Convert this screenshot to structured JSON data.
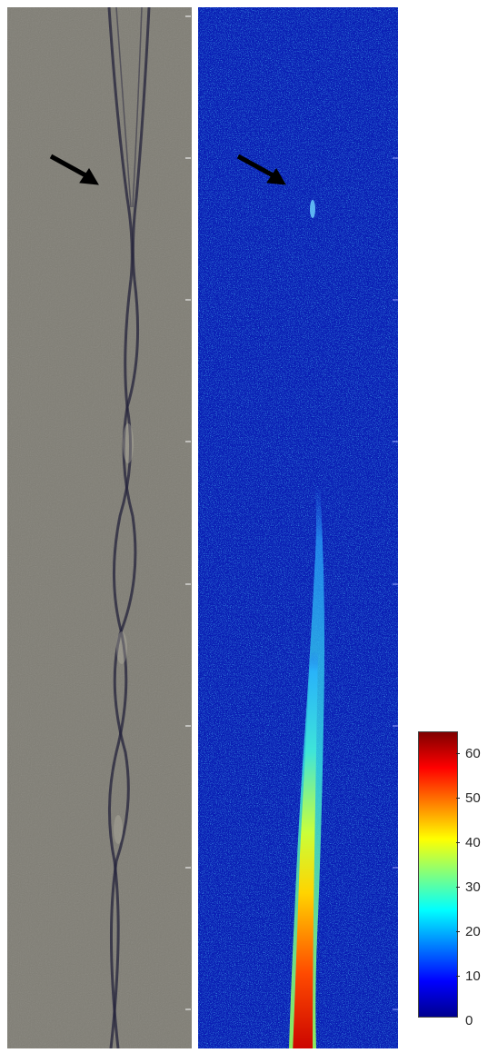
{
  "left_panel": {
    "description_name": "grayscale-photograph",
    "background_color": "#7f7d74",
    "fiber_color": "#1f1e3a"
  },
  "right_panel": {
    "description_name": "false-color-intensity-map",
    "background_color": "#0a1fb4"
  },
  "colorbar": {
    "colormap": "jet",
    "min": 0,
    "max": 64,
    "tick_labels": [
      "60",
      "50",
      "40",
      "30",
      "20",
      "10",
      "0"
    ]
  },
  "annotations": {
    "arrow_color": "#000000"
  }
}
